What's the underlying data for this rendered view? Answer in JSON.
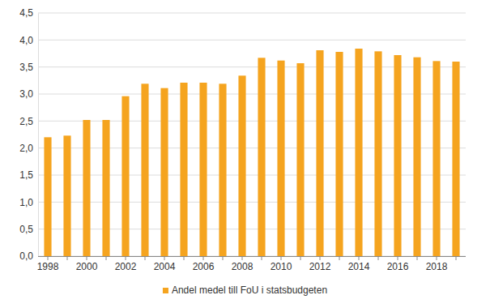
{
  "chart_data": {
    "type": "bar",
    "categories": [
      "1998",
      null,
      "2000",
      null,
      "2002",
      null,
      "2004",
      null,
      "2006",
      null,
      "2008",
      null,
      "2010",
      null,
      "2012",
      null,
      "2014",
      null,
      "2016",
      null,
      "2018",
      null
    ],
    "series": [
      {
        "name": "Andel medel till FoU i statsbudgeten",
        "color": "#f5a41f",
        "values": [
          2.2,
          2.23,
          2.52,
          2.52,
          2.96,
          3.19,
          3.11,
          3.21,
          3.21,
          3.19,
          3.34,
          3.67,
          3.62,
          3.57,
          3.81,
          3.78,
          3.84,
          3.79,
          3.72,
          3.68,
          3.61,
          3.6
        ]
      }
    ],
    "ylim": [
      0,
      4.5
    ],
    "yticks": [
      {
        "value": 0,
        "label": "0,0"
      },
      {
        "value": 0.5,
        "label": "0,5"
      },
      {
        "value": 1,
        "label": "1,0"
      },
      {
        "value": 1.5,
        "label": "1,5"
      },
      {
        "value": 2,
        "label": "2,0"
      },
      {
        "value": 2.5,
        "label": "2,5"
      },
      {
        "value": 3,
        "label": "3,0"
      },
      {
        "value": 3.5,
        "label": "3,5"
      },
      {
        "value": 4,
        "label": "4,0"
      },
      {
        "value": 4.5,
        "label": "4,5"
      }
    ],
    "grid": true,
    "legend": "bottom"
  }
}
